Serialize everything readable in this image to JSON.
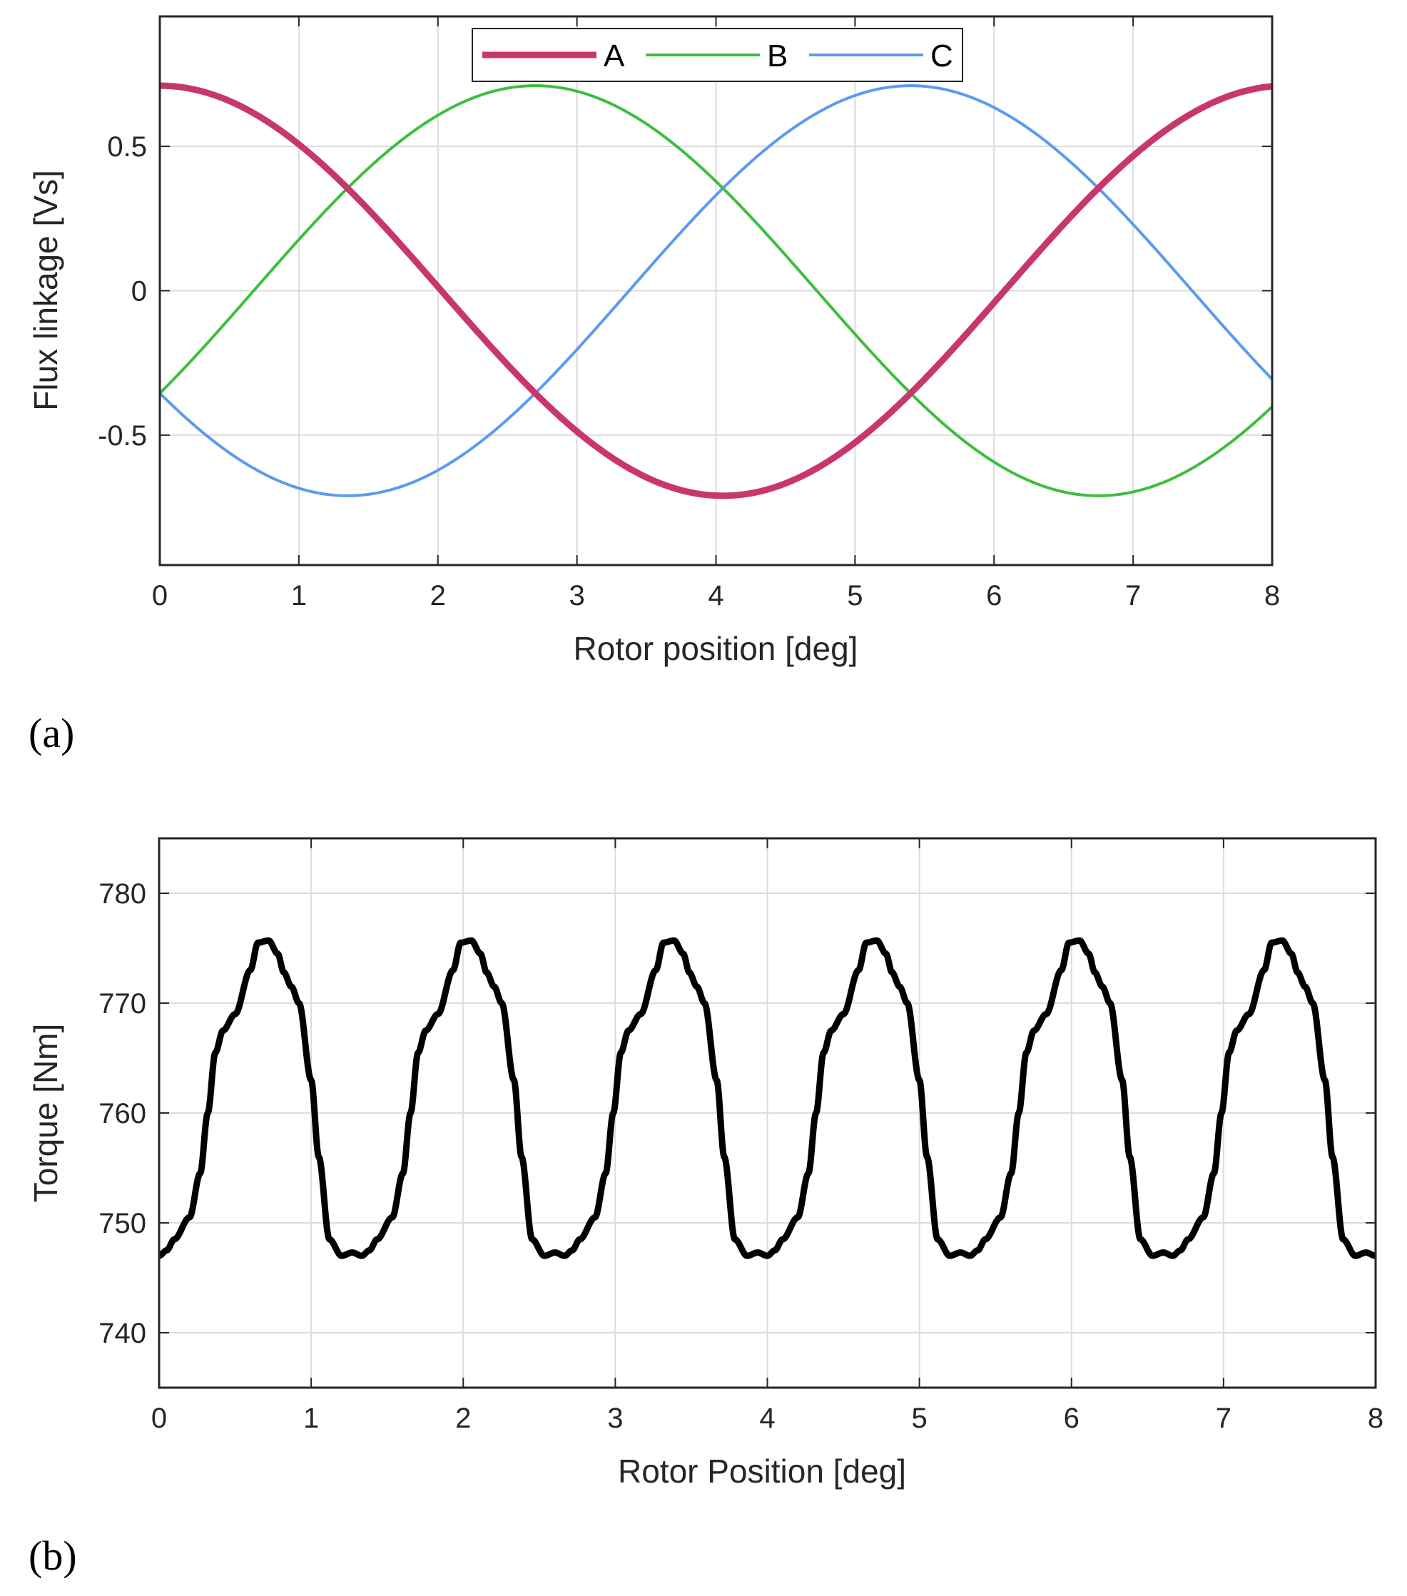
{
  "chart_data": [
    {
      "type": "line",
      "panel_label": "(a)",
      "xlabel": "Rotor position [deg]",
      "ylabel": "Flux linkage [Vs]",
      "xlim": [
        0,
        8
      ],
      "ylim": [
        -0.95,
        0.95
      ],
      "xticks": [
        0,
        1,
        2,
        3,
        4,
        5,
        6,
        7,
        8
      ],
      "xtick_labels": [
        "0",
        "1",
        "2",
        "3",
        "4",
        "5",
        "6",
        "7",
        "8"
      ],
      "yticks": [
        -0.5,
        0,
        0.5
      ],
      "ytick_labels": [
        "-0.5",
        "0",
        "0.5"
      ],
      "grid": true,
      "legend": {
        "position": "top-center",
        "orientation": "horizontal",
        "entries": [
          "A",
          "B",
          "C"
        ]
      },
      "series": [
        {
          "name": "A",
          "color": "#C8366E",
          "amplitude": 0.71,
          "period_deg": 8.1,
          "phase_deg": 0,
          "x_range": [
            0,
            8
          ]
        },
        {
          "name": "B",
          "color": "#3DBE3D",
          "amplitude": 0.71,
          "period_deg": 8.1,
          "phase_deg": -120,
          "x_range": [
            0,
            8
          ]
        },
        {
          "name": "C",
          "color": "#5A9BF0",
          "amplitude": 0.71,
          "period_deg": 8.1,
          "phase_deg": 120,
          "x_range": [
            0,
            8
          ]
        }
      ]
    },
    {
      "type": "line",
      "panel_label": "(b)",
      "xlabel": "Rotor Position [deg]",
      "ylabel": "Torque [Nm]",
      "xlim": [
        0,
        8
      ],
      "ylim": [
        735,
        785
      ],
      "xticks": [
        0,
        1,
        2,
        3,
        4,
        5,
        6,
        7,
        8
      ],
      "xtick_labels": [
        "0",
        "1",
        "2",
        "3",
        "4",
        "5",
        "6",
        "7",
        "8"
      ],
      "yticks": [
        740,
        750,
        760,
        770,
        780
      ],
      "ytick_labels": [
        "740",
        "750",
        "760",
        "770",
        "780"
      ],
      "grid": true,
      "series": [
        {
          "name": "Torque",
          "color": "#000000",
          "period_deg": 1.3333,
          "cycle_x": [
            0,
            0.05,
            0.1,
            0.2,
            0.27,
            0.32,
            0.37,
            0.42,
            0.5,
            0.6,
            0.65,
            0.72,
            0.78,
            0.82,
            0.87,
            0.92,
            1.0,
            1.05,
            1.12,
            1.2,
            1.27,
            1.3333
          ],
          "cycle_y": [
            747.0,
            747.5,
            748.5,
            750.5,
            754.5,
            760.0,
            765.5,
            767.5,
            769.0,
            773.0,
            775.5,
            775.7,
            774.5,
            772.8,
            771.5,
            770.0,
            763.0,
            756.0,
            748.5,
            747.0,
            747.3,
            747.0
          ]
        }
      ]
    }
  ]
}
